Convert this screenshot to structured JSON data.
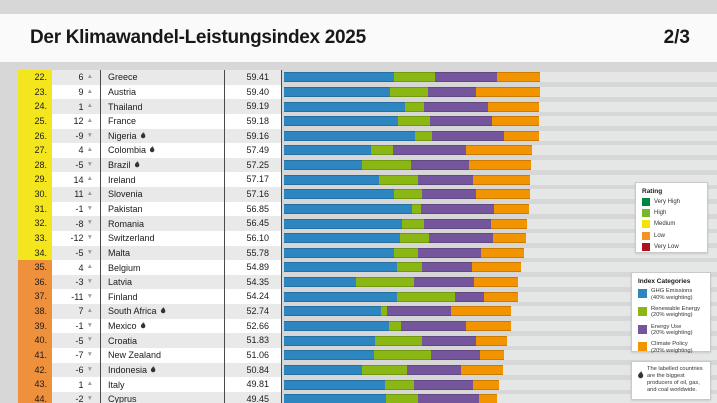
{
  "header": {
    "title": "Der Klimawandel-Leistungsindex 2025",
    "page_indicator": "2/3"
  },
  "colors": {
    "ghg": "#2e86c0",
    "renewable": "#8ab714",
    "energy": "#75569d",
    "climate": "#f29400",
    "rating_medium": "#f3e51e",
    "rating_low": "#ef903c",
    "arrow": "#9d9d9d",
    "track": "#e5e7e7"
  },
  "chart_data": {
    "type": "bar",
    "orientation": "horizontal",
    "stacked": true,
    "unit": "index points",
    "axis_max_points": 100,
    "categories": [
      "GHG Emissions",
      "Renewable Energy",
      "Energy Use",
      "Climate Policy"
    ],
    "rows": [
      {
        "rank": "22.",
        "change": "6",
        "direction": "up",
        "country": "Greece",
        "flame": false,
        "score": "59.41",
        "rating": "medium",
        "segments": [
          25.4,
          9.6,
          14.5,
          9.91
        ]
      },
      {
        "rank": "23.",
        "change": "9",
        "direction": "up",
        "country": "Austria",
        "flame": false,
        "score": "59.40",
        "rating": "medium",
        "segments": [
          24.5,
          8.9,
          11.1,
          14.9
        ]
      },
      {
        "rank": "24.",
        "change": "1",
        "direction": "up",
        "country": "Thailand",
        "flame": false,
        "score": "59.19",
        "rating": "medium",
        "segments": [
          28.1,
          4.4,
          14.9,
          11.79
        ]
      },
      {
        "rank": "25.",
        "change": "12",
        "direction": "up",
        "country": "France",
        "flame": false,
        "score": "59.18",
        "rating": "medium",
        "segments": [
          26.5,
          7.4,
          14.3,
          10.98
        ]
      },
      {
        "rank": "26.",
        "change": "-9",
        "direction": "down",
        "country": "Nigeria",
        "flame": true,
        "score": "59.16",
        "rating": "medium",
        "segments": [
          30.4,
          3.9,
          16.8,
          8.06
        ]
      },
      {
        "rank": "27.",
        "change": "4",
        "direction": "up",
        "country": "Colombia",
        "flame": true,
        "score": "57.49",
        "rating": "medium",
        "segments": [
          20.2,
          5.1,
          16.9,
          15.29
        ]
      },
      {
        "rank": "28.",
        "change": "-5",
        "direction": "down",
        "country": "Brazil",
        "flame": true,
        "score": "57.25",
        "rating": "medium",
        "segments": [
          18.2,
          11.2,
          13.6,
          14.25
        ]
      },
      {
        "rank": "29.",
        "change": "14",
        "direction": "up",
        "country": "Ireland",
        "flame": false,
        "score": "57.17",
        "rating": "medium",
        "segments": [
          22.1,
          8.9,
          12.8,
          13.37
        ]
      },
      {
        "rank": "30.",
        "change": "11",
        "direction": "up",
        "country": "Slovenia",
        "flame": false,
        "score": "57.16",
        "rating": "medium",
        "segments": [
          25.6,
          6.4,
          12.6,
          12.56
        ]
      },
      {
        "rank": "31.",
        "change": "-1",
        "direction": "down",
        "country": "Pakistan",
        "flame": false,
        "score": "56.85",
        "rating": "medium",
        "segments": [
          29.8,
          2.1,
          16.9,
          8.05
        ]
      },
      {
        "rank": "32.",
        "change": "-8",
        "direction": "down",
        "country": "Romania",
        "flame": false,
        "score": "56.45",
        "rating": "medium",
        "segments": [
          27.3,
          5.1,
          15.7,
          8.35
        ]
      },
      {
        "rank": "33.",
        "change": "-12",
        "direction": "down",
        "country": "Switzerland",
        "flame": false,
        "score": "56.10",
        "rating": "medium",
        "segments": [
          27.0,
          6.6,
          14.8,
          7.7
        ]
      },
      {
        "rank": "34.",
        "change": "-5",
        "direction": "down",
        "country": "Malta",
        "flame": false,
        "score": "55.78",
        "rating": "medium",
        "segments": [
          25.6,
          5.4,
          14.7,
          10.08
        ]
      },
      {
        "rank": "35.",
        "change": "4",
        "direction": "up",
        "country": "Belgium",
        "flame": false,
        "score": "54.89",
        "rating": "low",
        "segments": [
          26.1,
          5.8,
          11.6,
          11.39
        ]
      },
      {
        "rank": "36.",
        "change": "-3",
        "direction": "down",
        "country": "Latvia",
        "flame": false,
        "score": "54.35",
        "rating": "low",
        "segments": [
          16.6,
          13.6,
          14.0,
          10.15
        ]
      },
      {
        "rank": "37.",
        "change": "-11",
        "direction": "down",
        "country": "Finland",
        "flame": false,
        "score": "54.24",
        "rating": "low",
        "segments": [
          26.1,
          13.5,
          6.9,
          7.74
        ]
      },
      {
        "rank": "38.",
        "change": "7",
        "direction": "up",
        "country": "South Africa",
        "flame": true,
        "score": "52.74",
        "rating": "low",
        "segments": [
          22.6,
          1.2,
          14.9,
          14.04
        ]
      },
      {
        "rank": "39.",
        "change": "-1",
        "direction": "down",
        "country": "Mexico",
        "flame": true,
        "score": "52.66",
        "rating": "low",
        "segments": [
          24.3,
          2.8,
          15.2,
          10.36
        ]
      },
      {
        "rank": "40.",
        "change": "-5",
        "direction": "down",
        "country": "Croatia",
        "flame": false,
        "score": "51.83",
        "rating": "low",
        "segments": [
          21.2,
          10.9,
          12.5,
          7.23
        ]
      },
      {
        "rank": "41.",
        "change": "-7",
        "direction": "down",
        "country": "New Zealand",
        "flame": false,
        "score": "51.06",
        "rating": "low",
        "segments": [
          20.9,
          13.1,
          11.5,
          5.56
        ]
      },
      {
        "rank": "42.",
        "change": "-6",
        "direction": "down",
        "country": "Indonesia",
        "flame": true,
        "score": "50.84",
        "rating": "low",
        "segments": [
          18.2,
          10.3,
          12.5,
          9.84
        ]
      },
      {
        "rank": "43.",
        "change": "1",
        "direction": "up",
        "country": "Italy",
        "flame": false,
        "score": "49.81",
        "rating": "low",
        "segments": [
          23.5,
          6.7,
          13.7,
          5.91
        ]
      },
      {
        "rank": "44.",
        "change": "-2",
        "direction": "down",
        "country": "Cyprus",
        "flame": false,
        "score": "49.45",
        "rating": "low",
        "segments": [
          23.6,
          7.6,
          14.0,
          4.25
        ]
      }
    ]
  },
  "legend_rating": {
    "title": "Rating",
    "items": [
      {
        "label": "Very High",
        "color": "#00853e"
      },
      {
        "label": "High",
        "color": "#76b82a"
      },
      {
        "label": "Medium",
        "color": "#f3e500"
      },
      {
        "label": "Low",
        "color": "#f39325"
      },
      {
        "label": "Very Low",
        "color": "#b0121b"
      }
    ]
  },
  "legend_categories": {
    "title": "Index Categories",
    "items": [
      {
        "label": "GHG Emissions",
        "sub": "(40% weighting)",
        "color": "#2e86c0"
      },
      {
        "label": "Renewable Energy",
        "sub": "(20% weighting)",
        "color": "#8ab714"
      },
      {
        "label": "Energy Use",
        "sub": "(20% weighting)",
        "color": "#75569d"
      },
      {
        "label": "Climate Policy",
        "sub": "(20% weighting)",
        "color": "#f29400"
      }
    ]
  },
  "footnote": {
    "text": "The labelled countries are the biggest producers of oil, gas, and coal worldwide."
  }
}
